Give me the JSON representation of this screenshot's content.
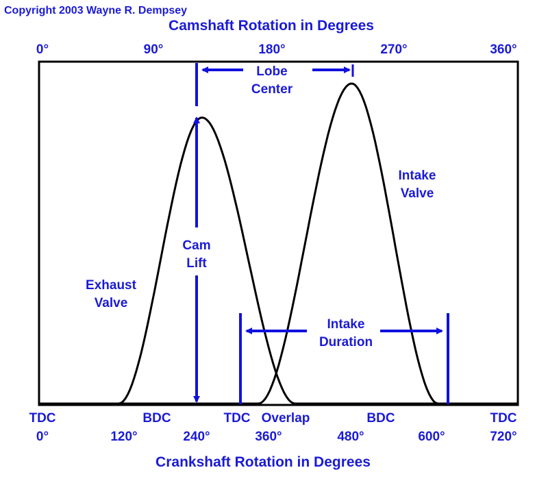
{
  "copyright": "Copyright 2003 Wayne R. Dempsey",
  "top_axis": {
    "title": "Camshaft Rotation in Degrees",
    "ticks": [
      "0°",
      "90°",
      "180°",
      "270°",
      "360°"
    ]
  },
  "bottom_axis": {
    "title": "Crankshaft Rotation in Degrees",
    "ticks": [
      "0°",
      "120°",
      "240°",
      "360°",
      "480°",
      "600°",
      "720°"
    ],
    "stroke_labels": [
      "TDC",
      "BDC",
      "TDC",
      "Overlap",
      "BDC",
      "TDC"
    ]
  },
  "labels": {
    "lobe_center": [
      "Lobe",
      "Center"
    ],
    "exhaust_valve": [
      "Exhaust",
      "Valve"
    ],
    "intake_valve": [
      "Intake",
      "Valve"
    ],
    "cam_lift": [
      "Cam",
      "Lift"
    ],
    "intake_duration": [
      "Intake",
      "Duration"
    ]
  },
  "colors": {
    "text": "#1a1ad6",
    "arrow": "#1010e0",
    "curve": "#000000",
    "frame": "#000000",
    "background": "#ffffff",
    "copyright": "#1a1ad6"
  },
  "chart_data": {
    "type": "line",
    "x_unit": "crankshaft degrees",
    "xlim": [
      0,
      720
    ],
    "ylim": [
      0,
      1
    ],
    "series": [
      {
        "name": "Exhaust Valve",
        "start": 120,
        "peak": 245,
        "end": 385,
        "peak_lift": 0.84
      },
      {
        "name": "Intake Valve",
        "start": 330,
        "peak": 470,
        "end": 600,
        "peak_lift": 0.94
      }
    ]
  }
}
